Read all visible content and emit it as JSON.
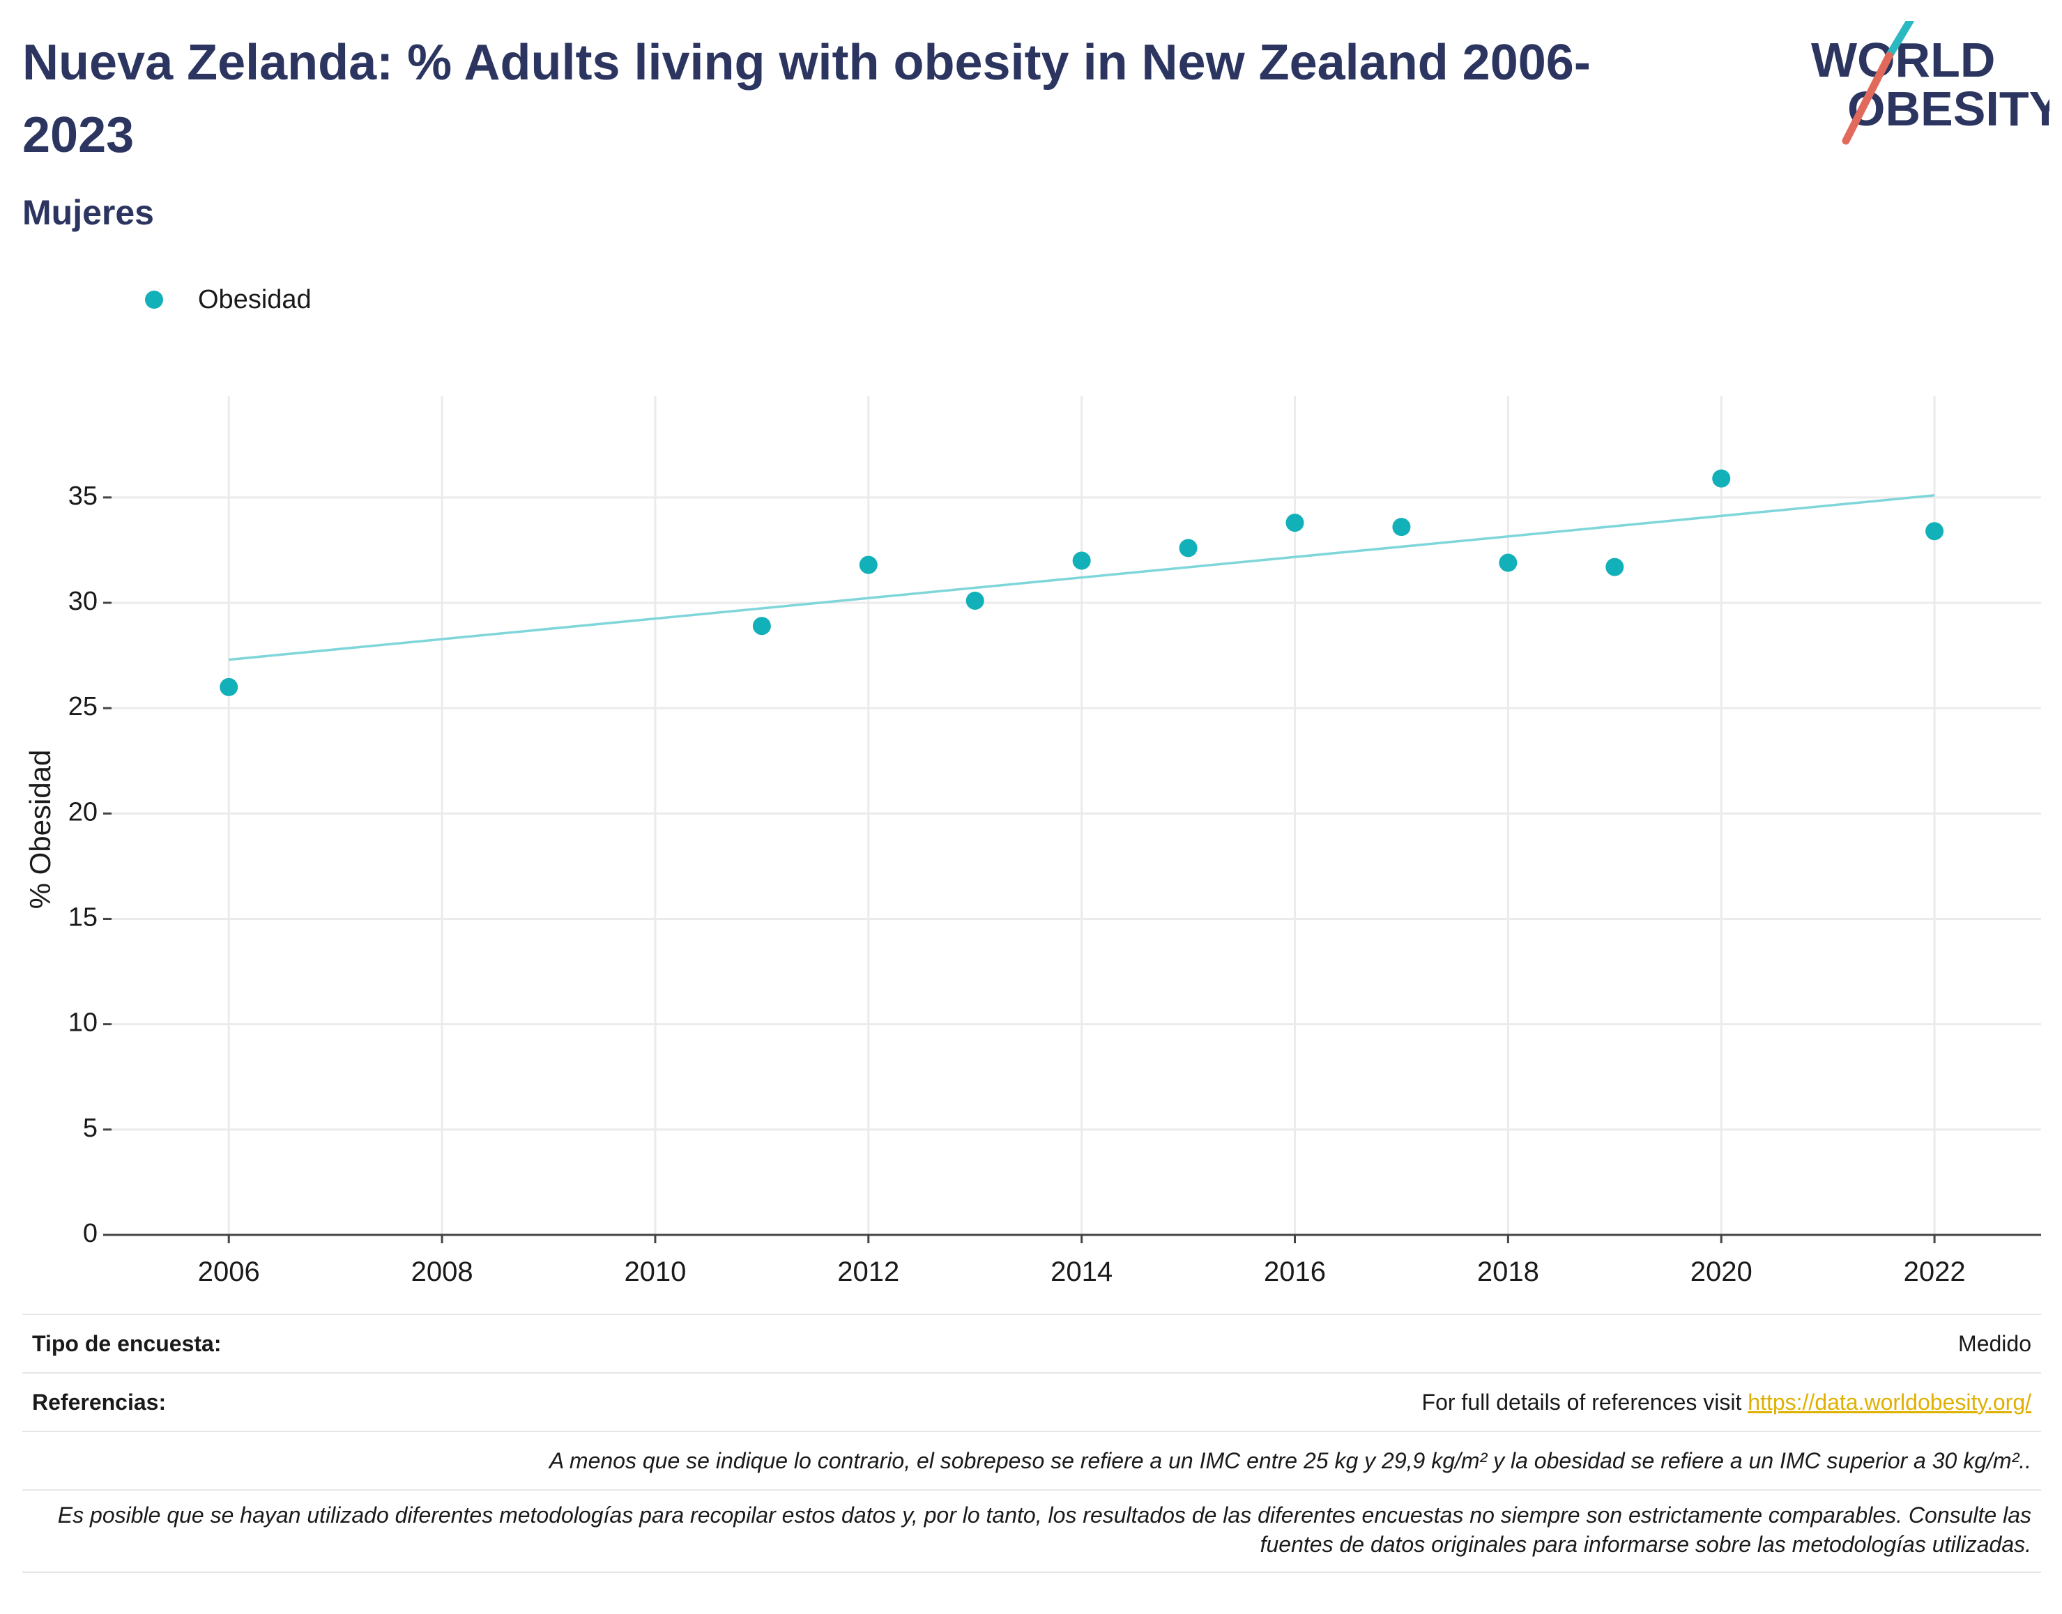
{
  "header": {
    "title": "Nueva Zelanda: % Adults living with obesity in New Zealand 2006-2023",
    "subtitle": "Mujeres",
    "logo_line1": "WORLD",
    "logo_line2": "OBESITY"
  },
  "legend": {
    "label": "Obesidad"
  },
  "colors": {
    "accent": "#12b0b8",
    "trend": "#7fd6da",
    "title": "#2b3560",
    "link": "#e0b000",
    "logo_teal": "#2cb8c0",
    "logo_red": "#e26a5c"
  },
  "chart_data": {
    "type": "scatter",
    "title": "Nueva Zelanda: % Adults living with obesity in New Zealand 2006-2023",
    "subtitle": "Mujeres",
    "ylabel": "% Obesidad",
    "xlabel": "",
    "xlim": [
      2004.9,
      2023
    ],
    "ylim": [
      0,
      38.5
    ],
    "xticks": [
      2006,
      2008,
      2010,
      2012,
      2014,
      2016,
      2018,
      2020,
      2022
    ],
    "yticks": [
      0,
      5,
      10,
      15,
      20,
      25,
      30,
      35
    ],
    "grid": true,
    "legend_position": "top-left",
    "series": [
      {
        "name": "Obesidad",
        "x": [
          2006,
          2011,
          2012,
          2013,
          2014,
          2015,
          2016,
          2017,
          2018,
          2019,
          2020,
          2022
        ],
        "y": [
          26.0,
          28.9,
          31.8,
          30.1,
          32.0,
          32.6,
          33.8,
          33.6,
          31.9,
          31.7,
          35.9,
          33.4
        ]
      }
    ],
    "trendline": {
      "x": [
        2006,
        2022
      ],
      "y": [
        27.3,
        35.1
      ]
    }
  },
  "footer": {
    "survey_label": "Tipo de encuesta:",
    "survey_value": "Medido",
    "refs_label": "Referencias:",
    "refs_text": "For full details of references visit ",
    "refs_link": "https://data.worldobesity.org/",
    "note1": "A menos que se indique lo contrario, el sobrepeso se refiere a un IMC entre 25 kg y 29,9 kg/m² y la obesidad se refiere a un IMC superior a 30 kg/m²..",
    "note2": "Es posible que se hayan utilizado diferentes metodologías para recopilar estos datos y, por lo tanto, los resultados de las diferentes encuestas no siempre son estrictamente comparables. Consulte las fuentes de datos originales para informarse sobre las metodologías utilizadas."
  }
}
